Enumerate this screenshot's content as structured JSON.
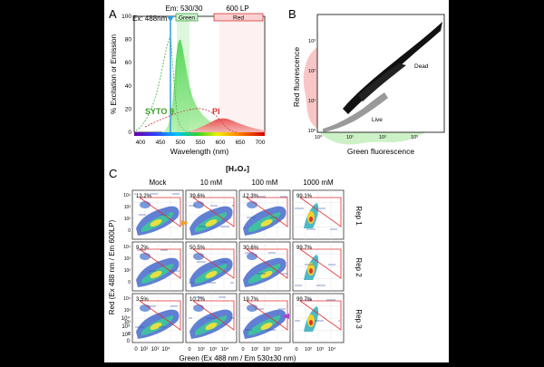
{
  "panelA": {
    "letter": "A",
    "excitation_label": "Ex: 488nm",
    "emission_filter_label": "Em: 530/30",
    "emission_filter_tag": "Green",
    "longpass_label": "600 LP",
    "longpass_tag": "Red",
    "syto9_label": "SYTO 9",
    "pi_label": "PI",
    "ylabel": "% Excitation or Emission",
    "xlabel": "Wavelength (nm)",
    "xticks": [
      "400",
      "450",
      "500",
      "550",
      "600",
      "650",
      "700"
    ],
    "yticks": [
      "0",
      "20",
      "40",
      "60",
      "80",
      "100"
    ],
    "colors": {
      "green_fill": "#33cc33",
      "red_fill": "#e83a3a",
      "ex_line": "#2e9de0"
    }
  },
  "panelB": {
    "letter": "B",
    "ylabel": "Red fluorescence",
    "xlabel": "Green fluorescence",
    "dead_label": "Dead",
    "live_label": "Live",
    "ticks": [
      "10⁰",
      "10¹",
      "10²",
      "10³"
    ],
    "colors": {
      "dead": "#111111",
      "live": "#9a9a9a"
    }
  },
  "panelC": {
    "letter": "C",
    "title": "[H₂O₂]",
    "columns": [
      "Mock",
      "10 mM",
      "100 mM",
      "1000 mM"
    ],
    "rows": [
      "Rep 1",
      "Rep 2",
      "Rep 3"
    ],
    "percentages": [
      [
        "13.2%",
        "39.6%",
        "12.3%",
        "99.1%"
      ],
      [
        "9.7%",
        "50.5%",
        "30.6%",
        "99.7%"
      ],
      [
        "3.5%",
        "10.2%",
        "19.7%",
        "99.7%"
      ]
    ],
    "ylabel": "Red (Ex 488 nm / Em 600LP)",
    "xlabel": "Green (Ex 488 nm / Em 530±30 nm)",
    "yticks": [
      "10⁴",
      "10³",
      "10²",
      "0"
    ],
    "xticks": [
      "0",
      "10²",
      "10³",
      "10⁴"
    ],
    "colors": {
      "gate": "#e03030",
      "orange_marker": "#f0a020",
      "purple_marker": "#b040c8"
    }
  }
}
